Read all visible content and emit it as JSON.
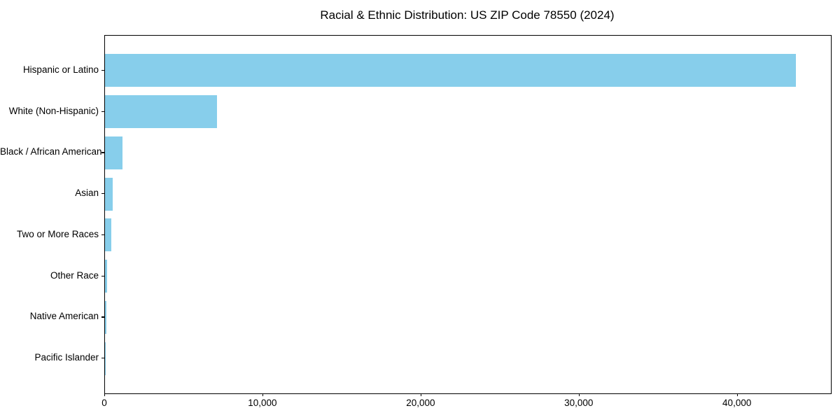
{
  "chart_data": {
    "type": "bar",
    "orientation": "horizontal",
    "title": "Racial & Ethnic Distribution: US ZIP Code 78550 (2024)",
    "categories": [
      "Hispanic or Latino",
      "White (Non-Hispanic)",
      "Black / African American",
      "Asian",
      "Two or More Races",
      "Other Race",
      "Native American",
      "Pacific Islander"
    ],
    "values": [
      43700,
      7100,
      1120,
      490,
      380,
      150,
      110,
      25
    ],
    "xlabel": "",
    "ylabel": "",
    "xlim": [
      0,
      45900
    ],
    "xticks": {
      "values": [
        0,
        10000,
        20000,
        30000,
        40000
      ],
      "labels": [
        "0",
        "10,000",
        "20,000",
        "30,000",
        "40,000"
      ]
    },
    "bar_color": "#87CEEB",
    "grid": false,
    "legend": null
  }
}
